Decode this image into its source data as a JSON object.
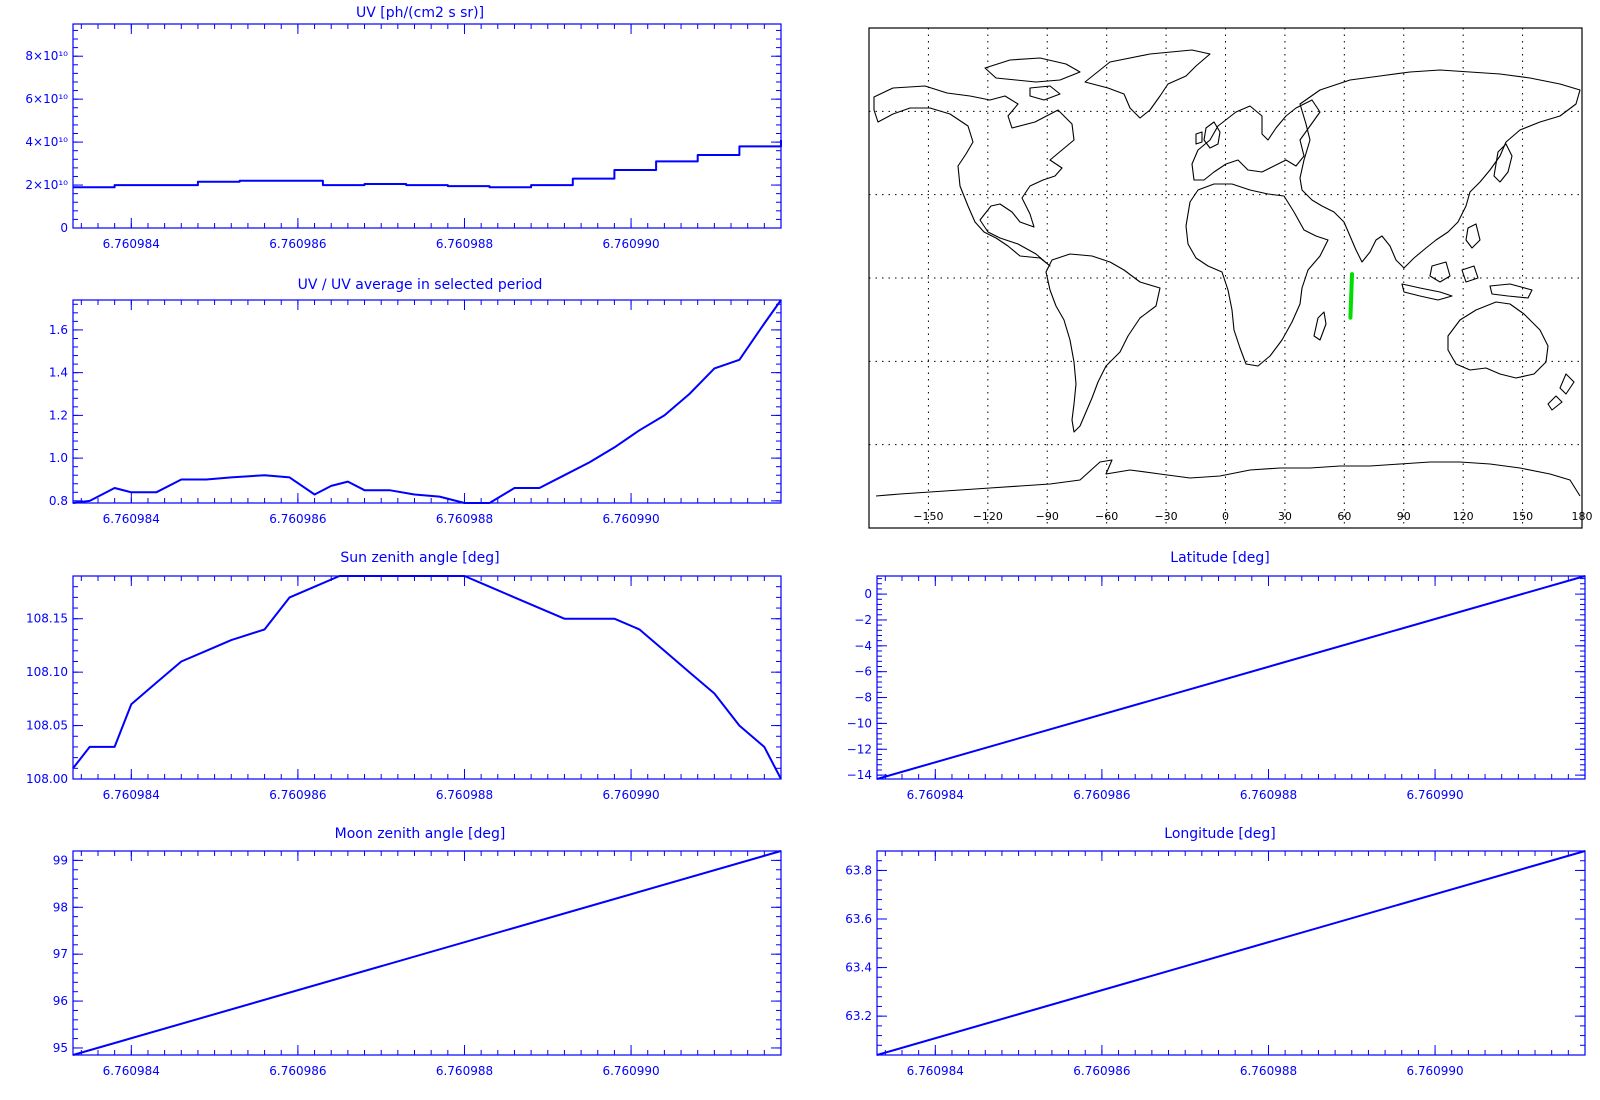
{
  "colors": {
    "axis": "#0000ff",
    "line": "#0000ff",
    "map_outline": "#000000",
    "track": "#00dd00",
    "grid": "#000000"
  },
  "chart_data": [
    {
      "id": "uv",
      "type": "line",
      "step": true,
      "title": "UV [ph/(cm2 s sr)]",
      "xlim": [
        6.7609833,
        6.7609918
      ],
      "ylim": [
        0,
        95000000000.0
      ],
      "xticks": [
        6.760984,
        6.760986,
        6.760988,
        6.76099
      ],
      "xtick_labels": [
        "6.760984",
        "6.760986",
        "6.760988",
        "6.760990"
      ],
      "yticks": [
        0,
        20000000000.0,
        40000000000.0,
        60000000000.0,
        80000000000.0
      ],
      "ytick_labels": [
        "0",
        "2×10¹⁰",
        "4×10¹⁰",
        "6×10¹⁰",
        "8×10¹⁰"
      ],
      "series": [
        {
          "x": [
            6.7609833,
            6.7609838,
            6.7609843,
            6.7609848,
            6.7609853,
            6.7609858,
            6.7609863,
            6.7609868,
            6.7609873,
            6.7609878,
            6.7609883,
            6.7609888,
            6.7609893,
            6.7609898,
            6.7609903,
            6.7609908,
            6.7609913,
            6.7609918
          ],
          "y": [
            19000000000.0,
            20000000000.0,
            20000000000.0,
            21500000000.0,
            22000000000.0,
            22000000000.0,
            20000000000.0,
            20500000000.0,
            20000000000.0,
            19500000000.0,
            19000000000.0,
            20000000000.0,
            23000000000.0,
            27000000000.0,
            31000000000.0,
            34000000000.0,
            38000000000.0,
            41000000000.0
          ]
        }
      ]
    },
    {
      "id": "ratio",
      "type": "line",
      "title": "UV / UV average in selected period",
      "xlim": [
        6.7609833,
        6.7609918
      ],
      "ylim": [
        0.79,
        1.74
      ],
      "xticks": [
        6.760984,
        6.760986,
        6.760988,
        6.76099
      ],
      "xtick_labels": [
        "6.760984",
        "6.760986",
        "6.760988",
        "6.760990"
      ],
      "yticks": [
        0.8,
        1.0,
        1.2,
        1.4,
        1.6
      ],
      "ytick_labels": [
        "0.8",
        "1.0",
        "1.2",
        "1.4",
        "1.6"
      ],
      "series": [
        {
          "x": [
            6.7609833,
            6.7609835,
            6.7609838,
            6.760984,
            6.7609843,
            6.7609846,
            6.7609849,
            6.7609852,
            6.7609856,
            6.7609859,
            6.7609862,
            6.7609864,
            6.7609866,
            6.7609868,
            6.7609871,
            6.7609874,
            6.7609877,
            6.760988,
            6.7609883,
            6.7609886,
            6.7609889,
            6.7609892,
            6.7609895,
            6.7609898,
            6.7609901,
            6.7609904,
            6.7609907,
            6.760991,
            6.7609913,
            6.7609916,
            6.7609918
          ],
          "y": [
            0.79,
            0.8,
            0.86,
            0.84,
            0.84,
            0.9,
            0.9,
            0.91,
            0.92,
            0.91,
            0.83,
            0.87,
            0.89,
            0.85,
            0.85,
            0.83,
            0.82,
            0.79,
            0.79,
            0.86,
            0.86,
            0.92,
            0.98,
            1.05,
            1.13,
            1.2,
            1.3,
            1.42,
            1.46,
            1.63,
            1.74
          ]
        }
      ]
    },
    {
      "id": "sza",
      "type": "line",
      "title": "Sun zenith angle [deg]",
      "xlim": [
        6.7609833,
        6.7609918
      ],
      "ylim": [
        108.0,
        108.19
      ],
      "xticks": [
        6.760984,
        6.760986,
        6.760988,
        6.76099
      ],
      "xtick_labels": [
        "6.760984",
        "6.760986",
        "6.760988",
        "6.760990"
      ],
      "yticks": [
        108.0,
        108.05,
        108.1,
        108.15
      ],
      "ytick_labels": [
        "108.00",
        "108.05",
        "108.10",
        "108.15"
      ],
      "series": [
        {
          "x": [
            6.7609833,
            6.7609835,
            6.7609838,
            6.760984,
            6.7609843,
            6.7609846,
            6.7609849,
            6.7609852,
            6.7609856,
            6.7609859,
            6.7609862,
            6.7609865,
            6.7609868,
            6.7609871,
            6.7609874,
            6.7609877,
            6.760988,
            6.7609883,
            6.7609886,
            6.7609889,
            6.7609892,
            6.7609895,
            6.7609898,
            6.7609901,
            6.7609904,
            6.7609907,
            6.760991,
            6.7609913,
            6.7609916,
            6.7609918
          ],
          "y": [
            108.01,
            108.03,
            108.03,
            108.07,
            108.09,
            108.11,
            108.12,
            108.13,
            108.14,
            108.17,
            108.18,
            108.19,
            108.19,
            108.19,
            108.19,
            108.19,
            108.19,
            108.18,
            108.17,
            108.16,
            108.15,
            108.15,
            108.15,
            108.14,
            108.12,
            108.1,
            108.08,
            108.05,
            108.03,
            108.0
          ]
        }
      ]
    },
    {
      "id": "lat",
      "type": "line",
      "title": "Latitude [deg]",
      "xlim": [
        6.7609833,
        6.7609918
      ],
      "ylim": [
        -14.3,
        1.4
      ],
      "xticks": [
        6.760984,
        6.760986,
        6.760988,
        6.76099
      ],
      "xtick_labels": [
        "6.760984",
        "6.760986",
        "6.760988",
        "6.760990"
      ],
      "yticks": [
        0,
        -2,
        -4,
        -6,
        -8,
        -10,
        -12,
        -14
      ],
      "ytick_labels": [
        "0",
        "−2",
        "−4",
        "−6",
        "−8",
        "−10",
        "−12",
        "−14"
      ],
      "series": [
        {
          "x": [
            6.7609833,
            6.7609918
          ],
          "y": [
            -14.3,
            1.4
          ]
        }
      ]
    },
    {
      "id": "mza",
      "type": "line",
      "title": "Moon zenith angle [deg]",
      "xlim": [
        6.7609833,
        6.7609918
      ],
      "ylim": [
        94.85,
        99.2
      ],
      "xticks": [
        6.760984,
        6.760986,
        6.760988,
        6.76099
      ],
      "xtick_labels": [
        "6.760984",
        "6.760986",
        "6.760988",
        "6.760990"
      ],
      "yticks": [
        95,
        96,
        97,
        98,
        99
      ],
      "ytick_labels": [
        "95",
        "96",
        "97",
        "98",
        "99"
      ],
      "series": [
        {
          "x": [
            6.7609833,
            6.7609918
          ],
          "y": [
            94.85,
            99.2
          ]
        }
      ]
    },
    {
      "id": "lon",
      "type": "line",
      "title": "Longitude [deg]",
      "xlim": [
        6.7609833,
        6.7609918
      ],
      "ylim": [
        63.04,
        63.88
      ],
      "xticks": [
        6.760984,
        6.760986,
        6.760988,
        6.76099
      ],
      "xtick_labels": [
        "6.760984",
        "6.760986",
        "6.760988",
        "6.760990"
      ],
      "yticks": [
        63.2,
        63.4,
        63.6,
        63.8
      ],
      "ytick_labels": [
        "63.2",
        "63.4",
        "63.6",
        "63.8"
      ],
      "series": [
        {
          "x": [
            6.7609833,
            6.7609918
          ],
          "y": [
            63.04,
            63.88
          ]
        }
      ]
    },
    {
      "id": "map",
      "type": "map",
      "xlim": [
        -180,
        180
      ],
      "ylim": [
        -90,
        90
      ],
      "lon_ticks": [
        -150,
        -120,
        -90,
        -60,
        -30,
        0,
        30,
        60,
        90,
        120,
        150,
        180
      ],
      "lon_tick_labels": [
        "−150",
        "−120",
        "−90",
        "−60",
        "−30",
        "0",
        "30",
        "60",
        "90",
        "120",
        "150",
        "180"
      ],
      "grid_lons": [
        -150,
        -120,
        -90,
        -60,
        -30,
        0,
        30,
        60,
        90,
        120,
        150
      ],
      "grid_lats": [
        -60,
        -30,
        0,
        30,
        60
      ],
      "track": {
        "lon": [
          63.04,
          63.88
        ],
        "lat": [
          -14.3,
          1.4
        ]
      }
    }
  ]
}
